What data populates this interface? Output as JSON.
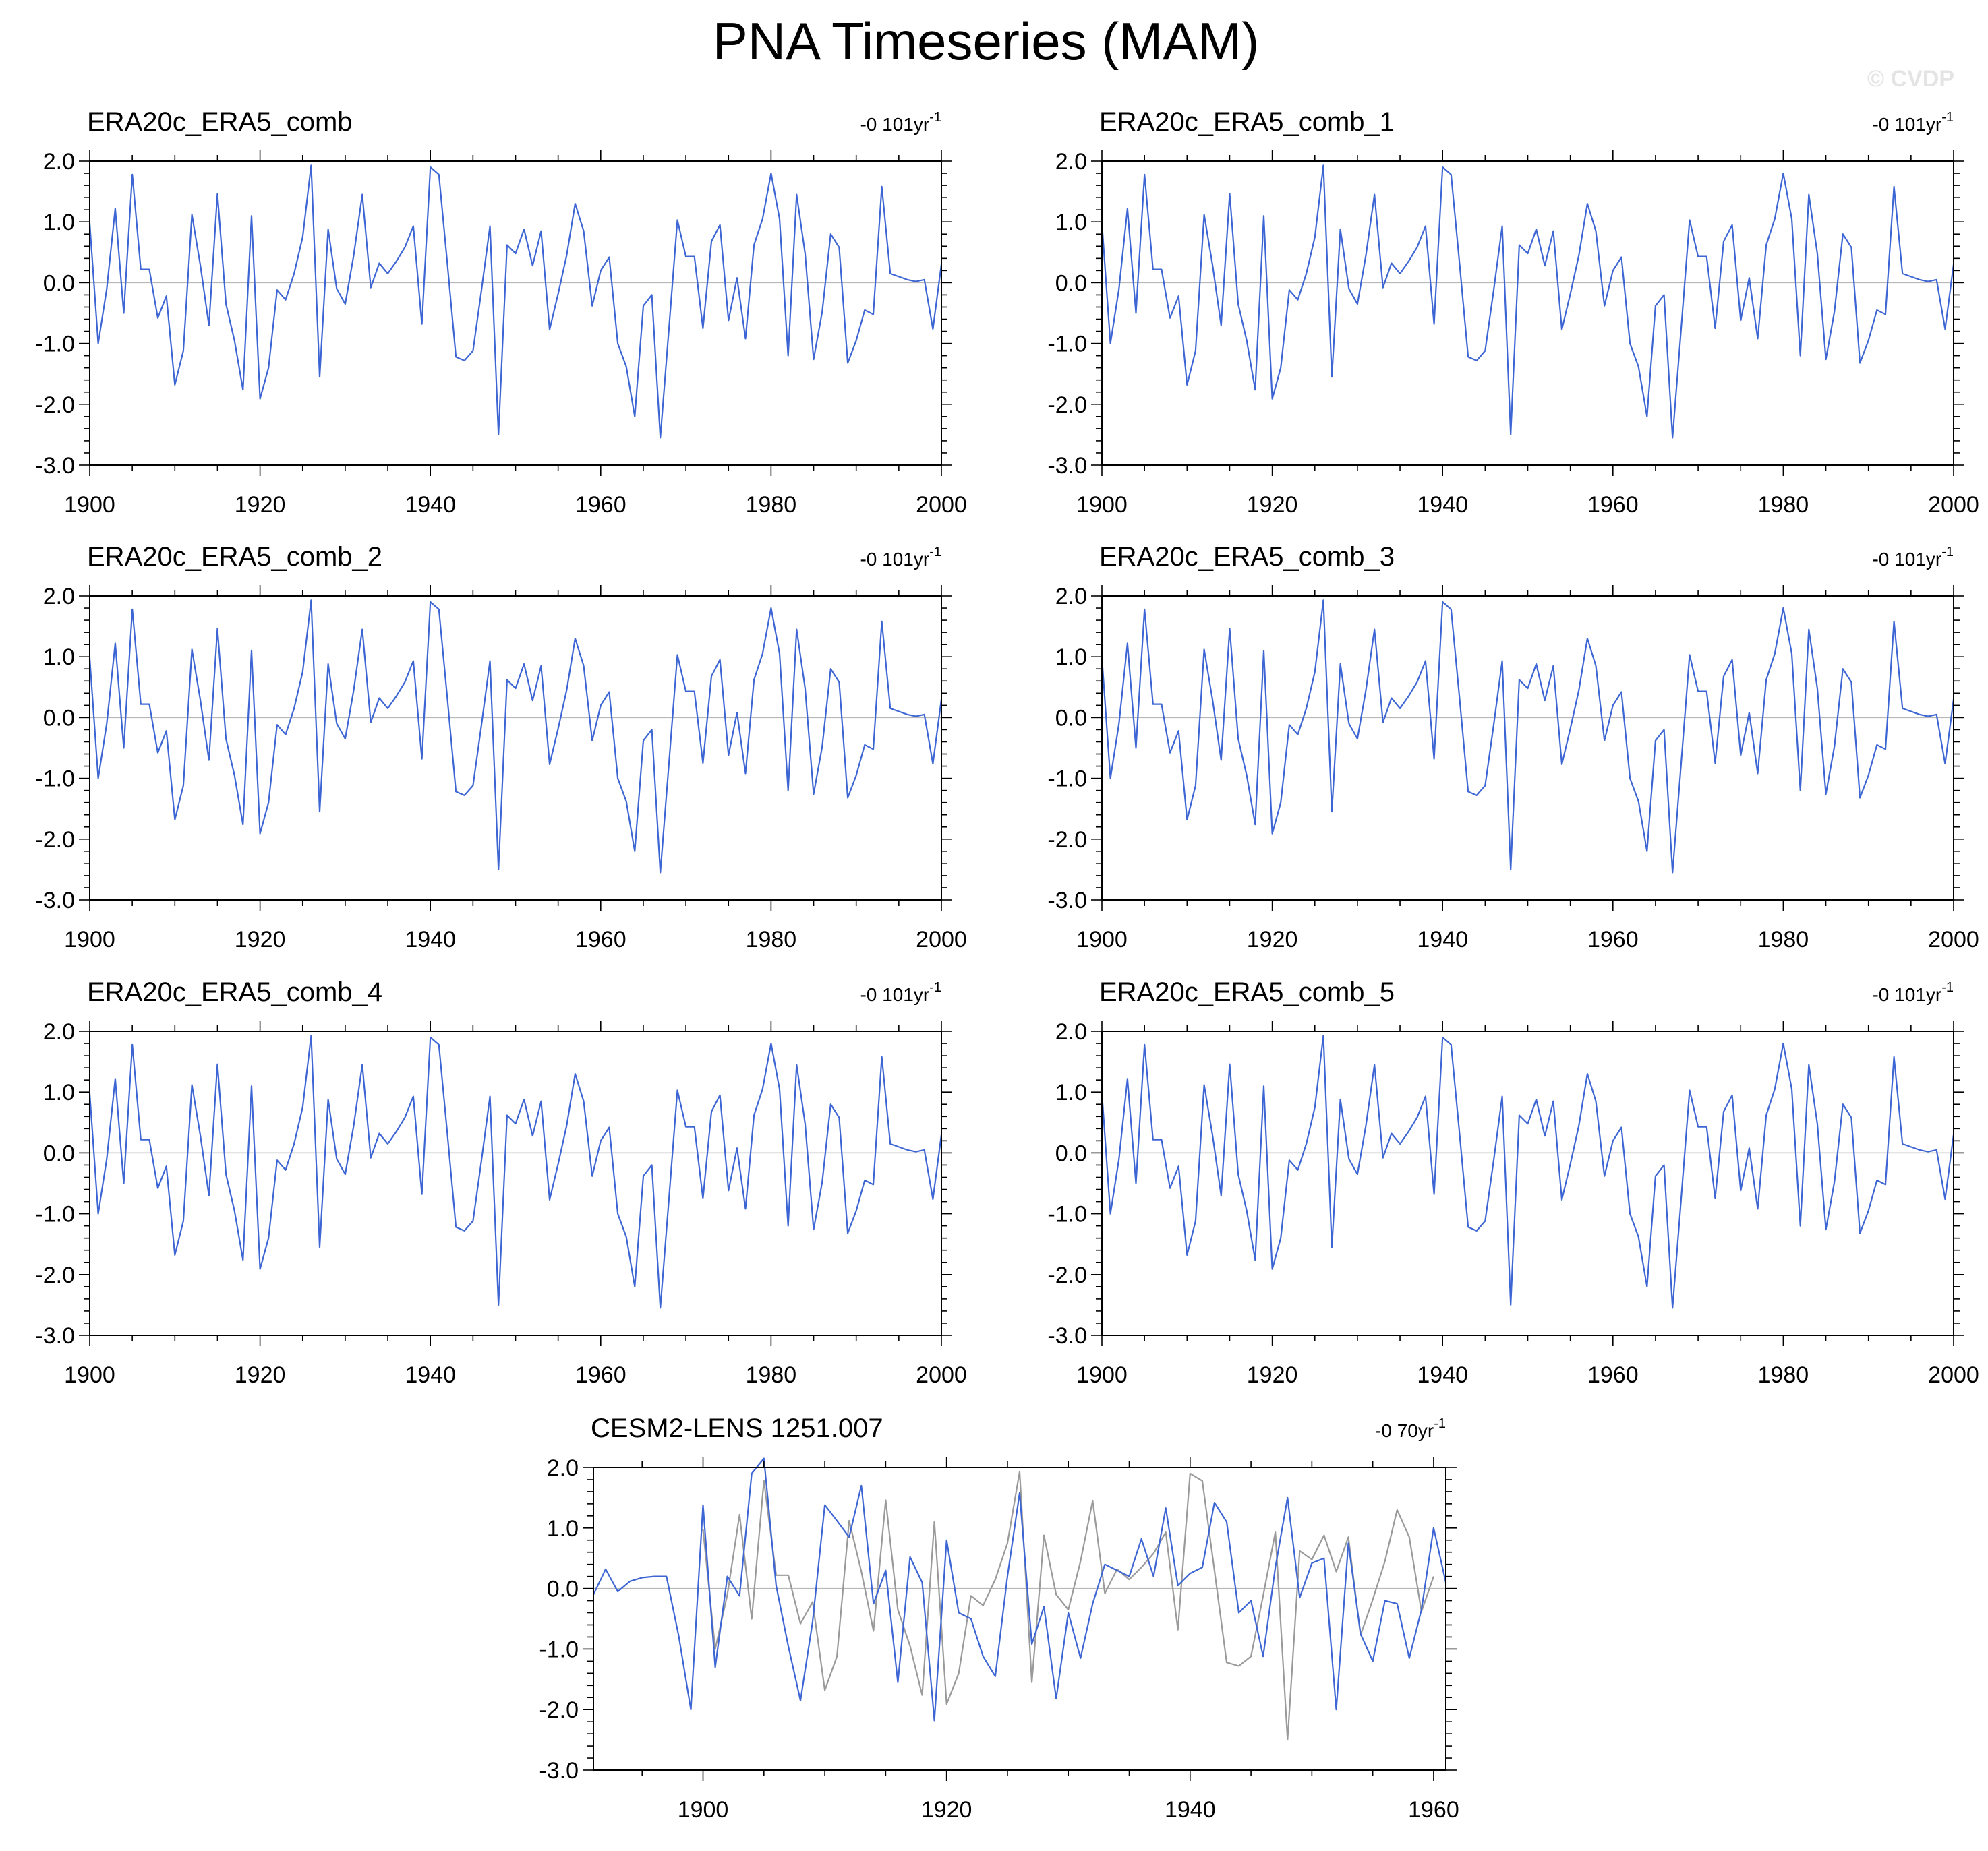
{
  "figure": {
    "title": "PNA Timeseries (MAM)",
    "watermark": "© CVDP"
  },
  "chart_data": [
    {
      "type": "line",
      "title": "ERA20c_ERA5_comb",
      "trend_label": "-0 101yr",
      "trend_exponent": "-1",
      "xlim": [
        1900,
        2000
      ],
      "ylim": [
        -3.0,
        2.0
      ],
      "xticks": [
        1900,
        1920,
        1940,
        1960,
        1980,
        2000
      ],
      "yticks": [
        "2.0",
        "1.0",
        "0.0",
        "-1.0",
        "-2.0",
        "-3.0"
      ],
      "series": [
        {
          "color": "#3d66d4",
          "x_start": 1900,
          "values": [
            0.98,
            -1.0,
            -0.1,
            1.22,
            -0.5,
            1.78,
            0.22,
            0.22,
            -0.58,
            -0.22,
            -1.68,
            -1.12,
            1.12,
            0.28,
            -0.7,
            1.46,
            -0.35,
            -0.95,
            -1.76,
            1.1,
            -1.91,
            -1.4,
            -0.12,
            -0.28,
            0.15,
            0.75,
            1.93,
            -1.55,
            0.88,
            -0.1,
            -0.35,
            0.45,
            1.45,
            -0.08,
            0.32,
            0.15,
            0.35,
            0.58,
            0.93,
            -0.68,
            1.9,
            1.78,
            0.3,
            -1.22,
            -1.28,
            -1.12,
            -0.12,
            0.93,
            -2.5,
            0.62,
            0.48,
            0.88,
            0.28,
            0.85,
            -0.77,
            -0.18,
            0.45,
            1.3,
            0.85,
            -0.38,
            0.2,
            0.42,
            -1.0,
            -1.38,
            -2.2,
            -0.38,
            -0.2,
            -2.55,
            -0.78,
            1.03,
            0.43,
            0.43,
            -0.75,
            0.68,
            0.95,
            -0.62,
            0.08,
            -0.92,
            0.62,
            1.05,
            1.8,
            1.05,
            -1.2,
            1.45,
            0.48,
            -1.26,
            -0.48,
            0.8,
            0.58,
            -1.32,
            -0.95,
            -0.45,
            -0.52,
            1.58,
            0.15,
            0.1,
            0.05,
            0.02,
            0.05,
            -0.76,
            0.3
          ]
        }
      ]
    },
    {
      "type": "line",
      "title": "ERA20c_ERA5_comb_1",
      "trend_label": "-0 101yr",
      "trend_exponent": "-1",
      "xlim": [
        1900,
        2000
      ],
      "ylim": [
        -3.0,
        2.0
      ],
      "xticks": [
        1900,
        1920,
        1940,
        1960,
        1980,
        2000
      ],
      "yticks": [
        "2.0",
        "1.0",
        "0.0",
        "-1.0",
        "-2.0",
        "-3.0"
      ],
      "series": [
        {
          "color": "#3d66d4",
          "x_start": 1900,
          "values": [
            0.98,
            -1.0,
            -0.1,
            1.22,
            -0.5,
            1.78,
            0.22,
            0.22,
            -0.58,
            -0.22,
            -1.68,
            -1.12,
            1.12,
            0.28,
            -0.7,
            1.46,
            -0.35,
            -0.95,
            -1.76,
            1.1,
            -1.91,
            -1.4,
            -0.12,
            -0.28,
            0.15,
            0.75,
            1.93,
            -1.55,
            0.88,
            -0.1,
            -0.35,
            0.45,
            1.45,
            -0.08,
            0.32,
            0.15,
            0.35,
            0.58,
            0.93,
            -0.68,
            1.9,
            1.78,
            0.3,
            -1.22,
            -1.28,
            -1.12,
            -0.12,
            0.93,
            -2.5,
            0.62,
            0.48,
            0.88,
            0.28,
            0.85,
            -0.77,
            -0.18,
            0.45,
            1.3,
            0.85,
            -0.38,
            0.2,
            0.42,
            -1.0,
            -1.38,
            -2.2,
            -0.38,
            -0.2,
            -2.55,
            -0.78,
            1.03,
            0.43,
            0.43,
            -0.75,
            0.68,
            0.95,
            -0.62,
            0.08,
            -0.92,
            0.62,
            1.05,
            1.8,
            1.05,
            -1.2,
            1.45,
            0.48,
            -1.26,
            -0.48,
            0.8,
            0.58,
            -1.32,
            -0.95,
            -0.45,
            -0.52,
            1.58,
            0.15,
            0.1,
            0.05,
            0.02,
            0.05,
            -0.76,
            0.3
          ]
        }
      ]
    },
    {
      "type": "line",
      "title": "ERA20c_ERA5_comb_2",
      "trend_label": "-0 101yr",
      "trend_exponent": "-1",
      "xlim": [
        1900,
        2000
      ],
      "ylim": [
        -3.0,
        2.0
      ],
      "xticks": [
        1900,
        1920,
        1940,
        1960,
        1980,
        2000
      ],
      "yticks": [
        "2.0",
        "1.0",
        "0.0",
        "-1.0",
        "-2.0",
        "-3.0"
      ],
      "series": [
        {
          "color": "#3d66d4",
          "x_start": 1900,
          "values": [
            0.98,
            -1.0,
            -0.1,
            1.22,
            -0.5,
            1.78,
            0.22,
            0.22,
            -0.58,
            -0.22,
            -1.68,
            -1.12,
            1.12,
            0.28,
            -0.7,
            1.46,
            -0.35,
            -0.95,
            -1.76,
            1.1,
            -1.91,
            -1.4,
            -0.12,
            -0.28,
            0.15,
            0.75,
            1.93,
            -1.55,
            0.88,
            -0.1,
            -0.35,
            0.45,
            1.45,
            -0.08,
            0.32,
            0.15,
            0.35,
            0.58,
            0.93,
            -0.68,
            1.9,
            1.78,
            0.3,
            -1.22,
            -1.28,
            -1.12,
            -0.12,
            0.93,
            -2.5,
            0.62,
            0.48,
            0.88,
            0.28,
            0.85,
            -0.77,
            -0.18,
            0.45,
            1.3,
            0.85,
            -0.38,
            0.2,
            0.42,
            -1.0,
            -1.38,
            -2.2,
            -0.38,
            -0.2,
            -2.55,
            -0.78,
            1.03,
            0.43,
            0.43,
            -0.75,
            0.68,
            0.95,
            -0.62,
            0.08,
            -0.92,
            0.62,
            1.05,
            1.8,
            1.05,
            -1.2,
            1.45,
            0.48,
            -1.26,
            -0.48,
            0.8,
            0.58,
            -1.32,
            -0.95,
            -0.45,
            -0.52,
            1.58,
            0.15,
            0.1,
            0.05,
            0.02,
            0.05,
            -0.76,
            0.3
          ]
        }
      ]
    },
    {
      "type": "line",
      "title": "ERA20c_ERA5_comb_3",
      "trend_label": "-0 101yr",
      "trend_exponent": "-1",
      "xlim": [
        1900,
        2000
      ],
      "ylim": [
        -3.0,
        2.0
      ],
      "xticks": [
        1900,
        1920,
        1940,
        1960,
        1980,
        2000
      ],
      "yticks": [
        "2.0",
        "1.0",
        "0.0",
        "-1.0",
        "-2.0",
        "-3.0"
      ],
      "series": [
        {
          "color": "#3d66d4",
          "x_start": 1900,
          "values": [
            0.98,
            -1.0,
            -0.1,
            1.22,
            -0.5,
            1.78,
            0.22,
            0.22,
            -0.58,
            -0.22,
            -1.68,
            -1.12,
            1.12,
            0.28,
            -0.7,
            1.46,
            -0.35,
            -0.95,
            -1.76,
            1.1,
            -1.91,
            -1.4,
            -0.12,
            -0.28,
            0.15,
            0.75,
            1.93,
            -1.55,
            0.88,
            -0.1,
            -0.35,
            0.45,
            1.45,
            -0.08,
            0.32,
            0.15,
            0.35,
            0.58,
            0.93,
            -0.68,
            1.9,
            1.78,
            0.3,
            -1.22,
            -1.28,
            -1.12,
            -0.12,
            0.93,
            -2.5,
            0.62,
            0.48,
            0.88,
            0.28,
            0.85,
            -0.77,
            -0.18,
            0.45,
            1.3,
            0.85,
            -0.38,
            0.2,
            0.42,
            -1.0,
            -1.38,
            -2.2,
            -0.38,
            -0.2,
            -2.55,
            -0.78,
            1.03,
            0.43,
            0.43,
            -0.75,
            0.68,
            0.95,
            -0.62,
            0.08,
            -0.92,
            0.62,
            1.05,
            1.8,
            1.05,
            -1.2,
            1.45,
            0.48,
            -1.26,
            -0.48,
            0.8,
            0.58,
            -1.32,
            -0.95,
            -0.45,
            -0.52,
            1.58,
            0.15,
            0.1,
            0.05,
            0.02,
            0.05,
            -0.76,
            0.3
          ]
        }
      ]
    },
    {
      "type": "line",
      "title": "ERA20c_ERA5_comb_4",
      "trend_label": "-0 101yr",
      "trend_exponent": "-1",
      "xlim": [
        1900,
        2000
      ],
      "ylim": [
        -3.0,
        2.0
      ],
      "xticks": [
        1900,
        1920,
        1940,
        1960,
        1980,
        2000
      ],
      "yticks": [
        "2.0",
        "1.0",
        "0.0",
        "-1.0",
        "-2.0",
        "-3.0"
      ],
      "series": [
        {
          "color": "#3d66d4",
          "x_start": 1900,
          "values": [
            0.98,
            -1.0,
            -0.1,
            1.22,
            -0.5,
            1.78,
            0.22,
            0.22,
            -0.58,
            -0.22,
            -1.68,
            -1.12,
            1.12,
            0.28,
            -0.7,
            1.46,
            -0.35,
            -0.95,
            -1.76,
            1.1,
            -1.91,
            -1.4,
            -0.12,
            -0.28,
            0.15,
            0.75,
            1.93,
            -1.55,
            0.88,
            -0.1,
            -0.35,
            0.45,
            1.45,
            -0.08,
            0.32,
            0.15,
            0.35,
            0.58,
            0.93,
            -0.68,
            1.9,
            1.78,
            0.3,
            -1.22,
            -1.28,
            -1.12,
            -0.12,
            0.93,
            -2.5,
            0.62,
            0.48,
            0.88,
            0.28,
            0.85,
            -0.77,
            -0.18,
            0.45,
            1.3,
            0.85,
            -0.38,
            0.2,
            0.42,
            -1.0,
            -1.38,
            -2.2,
            -0.38,
            -0.2,
            -2.55,
            -0.78,
            1.03,
            0.43,
            0.43,
            -0.75,
            0.68,
            0.95,
            -0.62,
            0.08,
            -0.92,
            0.62,
            1.05,
            1.8,
            1.05,
            -1.2,
            1.45,
            0.48,
            -1.26,
            -0.48,
            0.8,
            0.58,
            -1.32,
            -0.95,
            -0.45,
            -0.52,
            1.58,
            0.15,
            0.1,
            0.05,
            0.02,
            0.05,
            -0.76,
            0.3
          ]
        }
      ]
    },
    {
      "type": "line",
      "title": "ERA20c_ERA5_comb_5",
      "trend_label": "-0 101yr",
      "trend_exponent": "-1",
      "xlim": [
        1900,
        2000
      ],
      "ylim": [
        -3.0,
        2.0
      ],
      "xticks": [
        1900,
        1920,
        1940,
        1960,
        1980,
        2000
      ],
      "yticks": [
        "2.0",
        "1.0",
        "0.0",
        "-1.0",
        "-2.0",
        "-3.0"
      ],
      "series": [
        {
          "color": "#3d66d4",
          "x_start": 1900,
          "values": [
            0.98,
            -1.0,
            -0.1,
            1.22,
            -0.5,
            1.78,
            0.22,
            0.22,
            -0.58,
            -0.22,
            -1.68,
            -1.12,
            1.12,
            0.28,
            -0.7,
            1.46,
            -0.35,
            -0.95,
            -1.76,
            1.1,
            -1.91,
            -1.4,
            -0.12,
            -0.28,
            0.15,
            0.75,
            1.93,
            -1.55,
            0.88,
            -0.1,
            -0.35,
            0.45,
            1.45,
            -0.08,
            0.32,
            0.15,
            0.35,
            0.58,
            0.93,
            -0.68,
            1.9,
            1.78,
            0.3,
            -1.22,
            -1.28,
            -1.12,
            -0.12,
            0.93,
            -2.5,
            0.62,
            0.48,
            0.88,
            0.28,
            0.85,
            -0.77,
            -0.18,
            0.45,
            1.3,
            0.85,
            -0.38,
            0.2,
            0.42,
            -1.0,
            -1.38,
            -2.2,
            -0.38,
            -0.2,
            -2.55,
            -0.78,
            1.03,
            0.43,
            0.43,
            -0.75,
            0.68,
            0.95,
            -0.62,
            0.08,
            -0.92,
            0.62,
            1.05,
            1.8,
            1.05,
            -1.2,
            1.45,
            0.48,
            -1.26,
            -0.48,
            0.8,
            0.58,
            -1.32,
            -0.95,
            -0.45,
            -0.52,
            1.58,
            0.15,
            0.1,
            0.05,
            0.02,
            0.05,
            -0.76,
            0.3
          ]
        }
      ]
    },
    {
      "type": "line",
      "title": "CESM2-LENS 1251.007",
      "trend_label": "-0 70yr",
      "trend_exponent": "-1",
      "xlim": [
        1891,
        1961
      ],
      "ylim": [
        -3.0,
        2.0
      ],
      "xticks": [
        1900,
        1920,
        1940,
        1960
      ],
      "yticks": [
        "2.0",
        "1.0",
        "0.0",
        "-1.0",
        "-2.0",
        "-3.0"
      ],
      "series": [
        {
          "color": "#9a9a9a",
          "x_start": 1900,
          "values": [
            0.98,
            -1.0,
            -0.1,
            1.22,
            -0.5,
            1.78,
            0.22,
            0.22,
            -0.58,
            -0.22,
            -1.68,
            -1.12,
            1.12,
            0.28,
            -0.7,
            1.46,
            -0.35,
            -0.95,
            -1.76,
            1.1,
            -1.91,
            -1.4,
            -0.12,
            -0.28,
            0.15,
            0.75,
            1.93,
            -1.55,
            0.88,
            -0.1,
            -0.35,
            0.45,
            1.45,
            -0.08,
            0.32,
            0.15,
            0.35,
            0.58,
            0.93,
            -0.68,
            1.9,
            1.78,
            0.3,
            -1.22,
            -1.28,
            -1.12,
            -0.12,
            0.93,
            -2.5,
            0.62,
            0.48,
            0.88,
            0.28,
            0.85,
            -0.77,
            -0.18,
            0.45,
            1.3,
            0.85,
            -0.38,
            0.2
          ]
        },
        {
          "color": "#3d66d4",
          "x_start": 1891,
          "values": [
            -0.1,
            0.32,
            -0.05,
            0.12,
            0.18,
            0.2,
            0.2,
            -0.78,
            -2.0,
            1.38,
            -1.3,
            0.2,
            -0.12,
            1.9,
            2.15,
            0.05,
            -0.95,
            -1.85,
            -0.55,
            1.38,
            1.12,
            0.85,
            1.7,
            -0.25,
            0.3,
            -1.55,
            0.52,
            0.1,
            -2.18,
            0.8,
            -0.4,
            -0.5,
            -1.12,
            -1.45,
            0.2,
            1.58,
            -0.92,
            -0.3,
            -1.82,
            -0.4,
            -1.15,
            -0.25,
            0.4,
            0.3,
            0.2,
            0.82,
            0.2,
            1.33,
            0.05,
            0.25,
            0.35,
            1.42,
            1.1,
            -0.4,
            -0.2,
            -1.12,
            0.35,
            1.5,
            -0.15,
            0.42,
            0.5,
            -2.0,
            0.75,
            -0.75,
            -1.2,
            -0.2,
            -0.25,
            -1.15,
            -0.35,
            1.0,
            0.1
          ]
        }
      ]
    }
  ]
}
